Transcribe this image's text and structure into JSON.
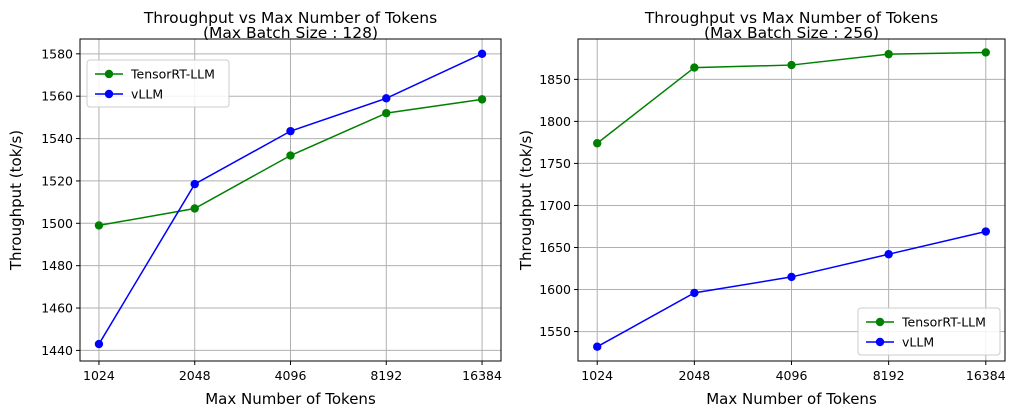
{
  "chart_data": [
    {
      "type": "line",
      "title": "Throughput vs Max Number of Tokens",
      "subtitle": "(Max Batch Size : 128)",
      "xlabel": "Max Number of Tokens",
      "ylabel": "Throughput (tok/s)",
      "categories": [
        "1024",
        "2048",
        "4096",
        "8192",
        "16384"
      ],
      "xscale": "log2",
      "ylim": [
        1435,
        1587
      ],
      "yticks": [
        1440,
        1460,
        1480,
        1500,
        1520,
        1540,
        1560,
        1580
      ],
      "grid": true,
      "legend_position": "top-left",
      "series": [
        {
          "name": "TensorRT-LLM",
          "color": "#008000",
          "values": [
            1499,
            1507,
            1532,
            1552,
            1558.5
          ]
        },
        {
          "name": "vLLM",
          "color": "#0000ff",
          "values": [
            1443,
            1518.5,
            1543.5,
            1559,
            1580
          ]
        }
      ]
    },
    {
      "type": "line",
      "title": "Throughput vs Max Number of Tokens",
      "subtitle": "(Max Batch Size : 256)",
      "xlabel": "Max Number of Tokens",
      "ylabel": "Throughput (tok/s)",
      "categories": [
        "1024",
        "2048",
        "4096",
        "8192",
        "16384"
      ],
      "xscale": "log2",
      "ylim": [
        1515,
        1898
      ],
      "yticks": [
        1550,
        1600,
        1650,
        1700,
        1750,
        1800,
        1850
      ],
      "grid": true,
      "legend_position": "bottom-right",
      "series": [
        {
          "name": "TensorRT-LLM",
          "color": "#008000",
          "values": [
            1774,
            1864,
            1867,
            1880,
            1882
          ]
        },
        {
          "name": "vLLM",
          "color": "#0000ff",
          "values": [
            1532,
            1596,
            1615,
            1642,
            1669
          ]
        }
      ]
    }
  ]
}
